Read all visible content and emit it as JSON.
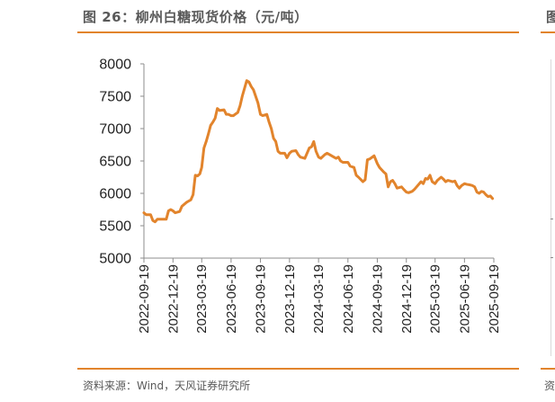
{
  "figure": {
    "title": "图 26：柳州白糖现货价格（元/吨）",
    "source": "资料来源：Wind，天风证券研究所",
    "right_clip_title_char": "图",
    "right_clip_source_char": "资"
  },
  "chart_data": {
    "type": "line",
    "title": "柳州白糖现货价格（元/吨）",
    "xlabel": "",
    "ylabel": "",
    "ylim": [
      5000,
      8000
    ],
    "yticks": [
      5000,
      5500,
      6000,
      6500,
      7000,
      7500,
      8000
    ],
    "xticks": [
      "2022-09-19",
      "2022-12-19",
      "2023-03-19",
      "2023-06-19",
      "2023-09-19",
      "2023-12-19",
      "2024-03-19",
      "2024-06-19",
      "2024-09-19",
      "2024-12-19",
      "2025-03-19",
      "2025-06-19",
      "2025-09-19"
    ],
    "grid": false,
    "legend": "none",
    "color": "#E2842C",
    "series": [
      {
        "values": [
          [
            "2022-09-19",
            5700
          ],
          [
            "2022-09-26",
            5670
          ],
          [
            "2022-10-10",
            5670
          ],
          [
            "2022-10-17",
            5580
          ],
          [
            "2022-10-24",
            5560
          ],
          [
            "2022-10-31",
            5600
          ],
          [
            "2022-11-28",
            5600
          ],
          [
            "2022-12-05",
            5730
          ],
          [
            "2022-12-12",
            5750
          ],
          [
            "2022-12-19",
            5730
          ],
          [
            "2022-12-26",
            5700
          ],
          [
            "2023-01-09",
            5720
          ],
          [
            "2023-01-16",
            5800
          ],
          [
            "2023-01-30",
            5860
          ],
          [
            "2023-02-06",
            5880
          ],
          [
            "2023-02-13",
            5900
          ],
          [
            "2023-02-20",
            5980
          ],
          [
            "2023-02-27",
            6280
          ],
          [
            "2023-03-06",
            6270
          ],
          [
            "2023-03-13",
            6300
          ],
          [
            "2023-03-19",
            6400
          ],
          [
            "2023-03-26",
            6700
          ],
          [
            "2023-04-02",
            6800
          ],
          [
            "2023-04-09",
            6920
          ],
          [
            "2023-04-16",
            7050
          ],
          [
            "2023-04-23",
            7100
          ],
          [
            "2023-04-30",
            7160
          ],
          [
            "2023-05-07",
            7310
          ],
          [
            "2023-05-14",
            7280
          ],
          [
            "2023-05-28",
            7290
          ],
          [
            "2023-06-04",
            7220
          ],
          [
            "2023-06-11",
            7220
          ],
          [
            "2023-06-19",
            7200
          ],
          [
            "2023-06-26",
            7200
          ],
          [
            "2023-07-10",
            7250
          ],
          [
            "2023-07-17",
            7350
          ],
          [
            "2023-07-24",
            7500
          ],
          [
            "2023-08-07",
            7740
          ],
          [
            "2023-08-14",
            7720
          ],
          [
            "2023-08-21",
            7650
          ],
          [
            "2023-08-28",
            7600
          ],
          [
            "2023-09-04",
            7500
          ],
          [
            "2023-09-11",
            7400
          ],
          [
            "2023-09-19",
            7220
          ],
          [
            "2023-09-26",
            7200
          ],
          [
            "2023-10-09",
            7220
          ],
          [
            "2023-10-16",
            7100
          ],
          [
            "2023-10-23",
            7000
          ],
          [
            "2023-10-30",
            6850
          ],
          [
            "2023-11-06",
            6800
          ],
          [
            "2023-11-13",
            6650
          ],
          [
            "2023-11-20",
            6620
          ],
          [
            "2023-12-04",
            6620
          ],
          [
            "2023-12-11",
            6550
          ],
          [
            "2023-12-19",
            6620
          ],
          [
            "2023-12-26",
            6650
          ],
          [
            "2024-01-08",
            6660
          ],
          [
            "2024-01-15",
            6600
          ],
          [
            "2024-01-22",
            6560
          ],
          [
            "2024-02-05",
            6540
          ],
          [
            "2024-02-19",
            6700
          ],
          [
            "2024-02-26",
            6720
          ],
          [
            "2024-03-04",
            6800
          ],
          [
            "2024-03-11",
            6650
          ],
          [
            "2024-03-19",
            6560
          ],
          [
            "2024-03-26",
            6540
          ],
          [
            "2024-04-08",
            6600
          ],
          [
            "2024-04-15",
            6620
          ],
          [
            "2024-04-22",
            6600
          ],
          [
            "2024-05-06",
            6560
          ],
          [
            "2024-05-13",
            6540
          ],
          [
            "2024-05-20",
            6560
          ],
          [
            "2024-05-27",
            6500
          ],
          [
            "2024-06-03",
            6480
          ],
          [
            "2024-06-10",
            6480
          ],
          [
            "2024-06-19",
            6480
          ],
          [
            "2024-06-26",
            6420
          ],
          [
            "2024-07-08",
            6400
          ],
          [
            "2024-07-15",
            6280
          ],
          [
            "2024-07-22",
            6250
          ],
          [
            "2024-08-05",
            6180
          ],
          [
            "2024-08-12",
            6210
          ],
          [
            "2024-08-19",
            6520
          ],
          [
            "2024-08-26",
            6530
          ],
          [
            "2024-09-09",
            6580
          ],
          [
            "2024-09-19",
            6460
          ],
          [
            "2024-09-26",
            6400
          ],
          [
            "2024-10-09",
            6330
          ],
          [
            "2024-10-16",
            6300
          ],
          [
            "2024-10-23",
            6100
          ],
          [
            "2024-10-30",
            6180
          ],
          [
            "2024-11-06",
            6200
          ],
          [
            "2024-11-13",
            6150
          ],
          [
            "2024-11-20",
            6080
          ],
          [
            "2024-12-04",
            6100
          ],
          [
            "2024-12-11",
            6060
          ],
          [
            "2024-12-19",
            6020
          ],
          [
            "2024-12-26",
            6010
          ],
          [
            "2025-01-06",
            6030
          ],
          [
            "2025-01-13",
            6060
          ],
          [
            "2025-01-20",
            6100
          ],
          [
            "2025-02-03",
            6180
          ],
          [
            "2025-02-10",
            6150
          ],
          [
            "2025-02-17",
            6230
          ],
          [
            "2025-02-24",
            6220
          ],
          [
            "2025-03-03",
            6280
          ],
          [
            "2025-03-10",
            6180
          ],
          [
            "2025-03-19",
            6150
          ],
          [
            "2025-03-26",
            6200
          ],
          [
            "2025-04-07",
            6250
          ],
          [
            "2025-04-14",
            6220
          ],
          [
            "2025-04-21",
            6180
          ],
          [
            "2025-04-28",
            6200
          ],
          [
            "2025-05-06",
            6190
          ],
          [
            "2025-05-13",
            6180
          ],
          [
            "2025-05-20",
            6190
          ],
          [
            "2025-05-27",
            6120
          ],
          [
            "2025-06-03",
            6080
          ],
          [
            "2025-06-10",
            6120
          ],
          [
            "2025-06-19",
            6150
          ],
          [
            "2025-06-26",
            6140
          ],
          [
            "2025-07-07",
            6130
          ],
          [
            "2025-07-14",
            6120
          ],
          [
            "2025-07-21",
            6100
          ],
          [
            "2025-07-28",
            6020
          ],
          [
            "2025-08-04",
            6000
          ],
          [
            "2025-08-11",
            6030
          ],
          [
            "2025-08-18",
            6020
          ],
          [
            "2025-08-25",
            5980
          ],
          [
            "2025-09-01",
            5950
          ],
          [
            "2025-09-08",
            5960
          ],
          [
            "2025-09-15",
            5920
          ]
        ]
      }
    ]
  }
}
